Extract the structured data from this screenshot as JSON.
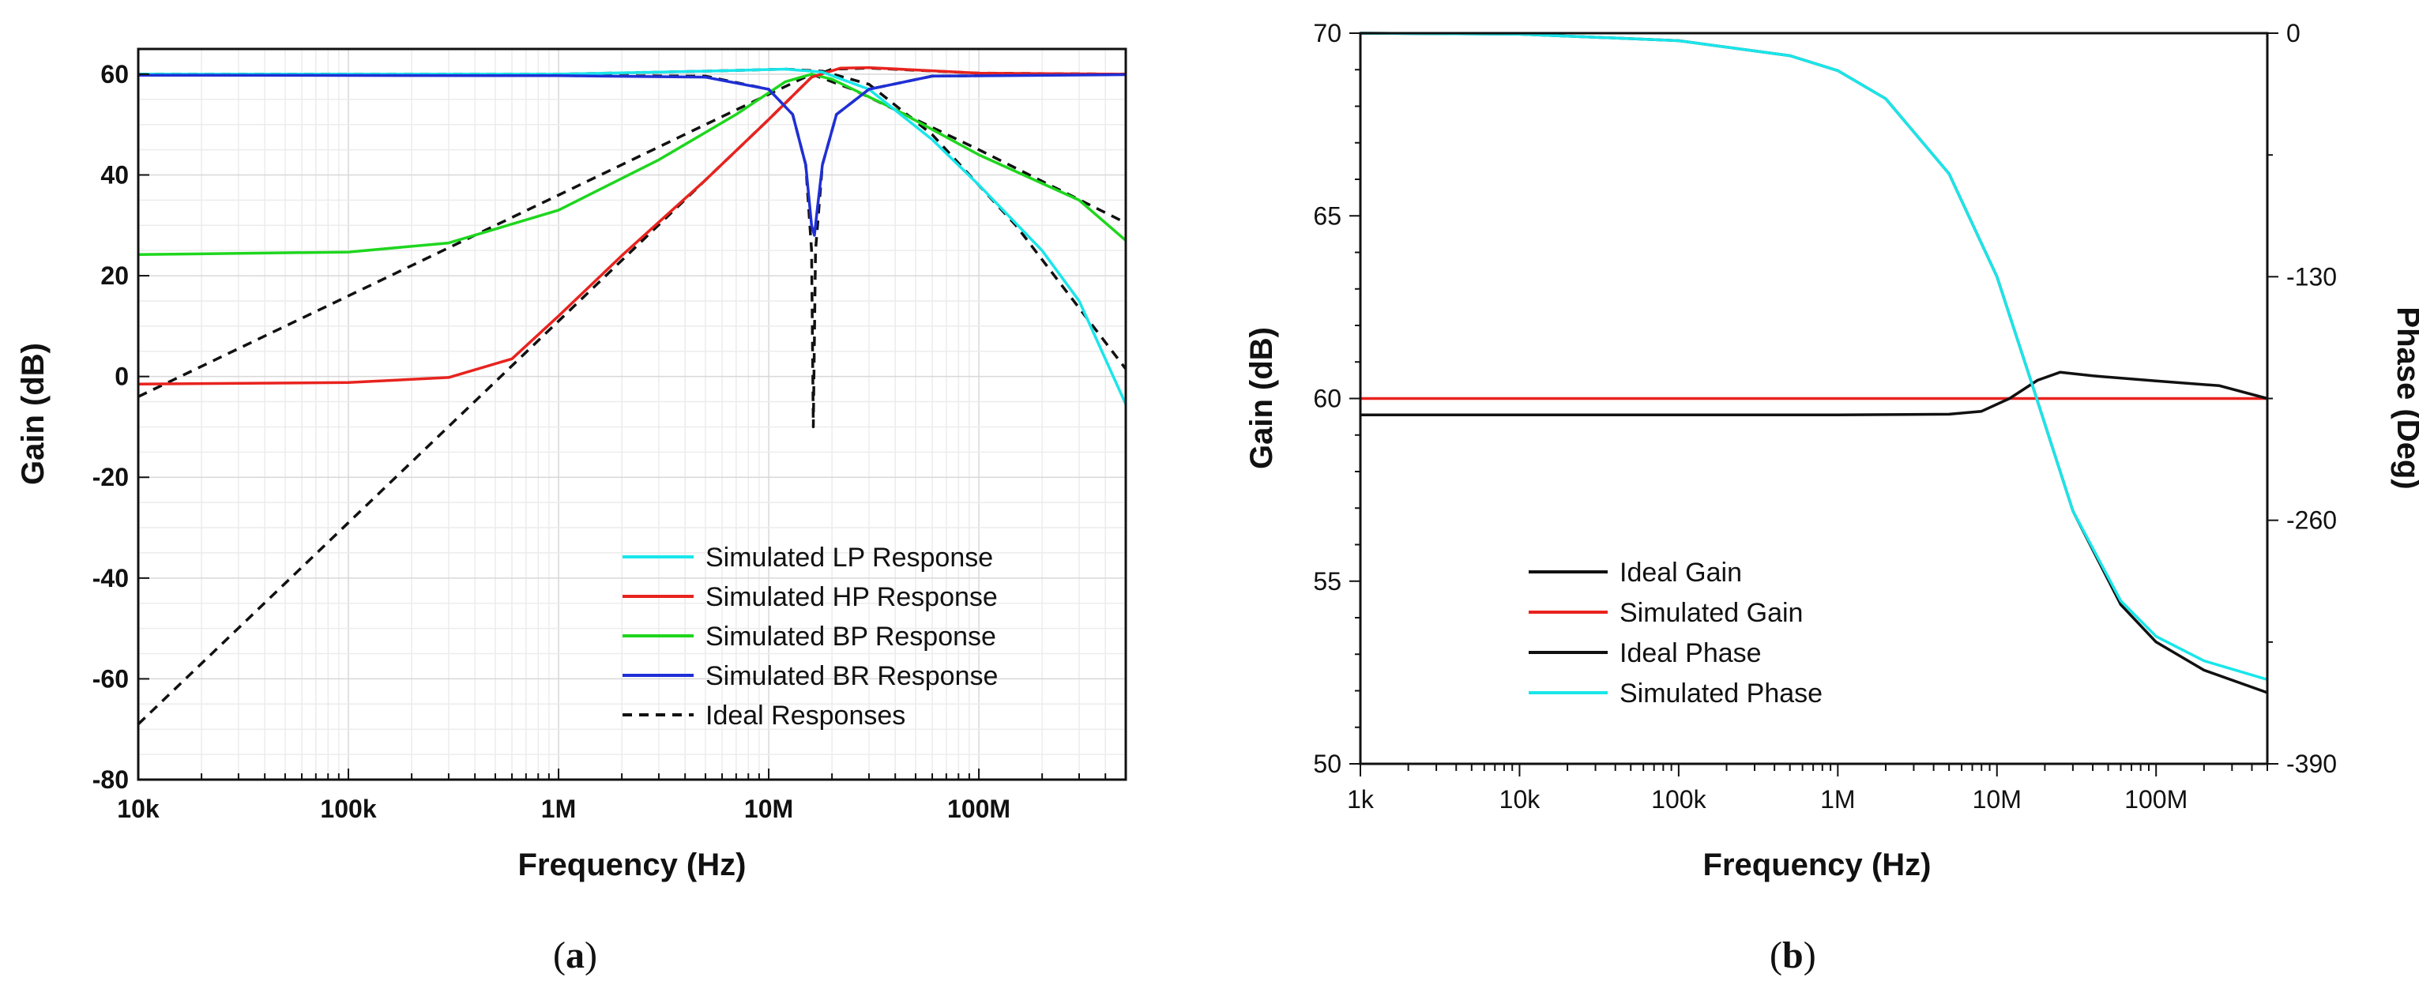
{
  "colors": {
    "lp": "#19e6ea",
    "hp": "#e8231e",
    "bp": "#1ed61e",
    "br": "#1f2fd6",
    "ideal": "#111111",
    "sim_phase": "#19e6ea"
  },
  "panels": {
    "a": {
      "caption_open": "(",
      "caption_letter": "a",
      "caption_close": ")"
    },
    "b": {
      "caption_open": "(",
      "caption_letter": "b",
      "caption_close": ")"
    }
  },
  "chart_data": [
    {
      "type": "line",
      "xlabel": "Frequency (Hz)",
      "ylabel": "Gain (dB)",
      "xscale": "log",
      "xlim": [
        10000,
        500000000
      ],
      "ylim": [
        -80,
        65
      ],
      "xticks": [
        {
          "v": 10000,
          "t": "10k"
        },
        {
          "v": 100000,
          "t": "100k"
        },
        {
          "v": 1000000,
          "t": "1M"
        },
        {
          "v": 10000000,
          "t": "10M"
        },
        {
          "v": 100000000,
          "t": "100M"
        }
      ],
      "yticks": [
        {
          "v": -80,
          "t": "-80"
        },
        {
          "v": -60,
          "t": "-60"
        },
        {
          "v": -40,
          "t": "-40"
        },
        {
          "v": -20,
          "t": "-20"
        },
        {
          "v": 0,
          "t": "0"
        },
        {
          "v": 20,
          "t": "20"
        },
        {
          "v": 40,
          "t": "40"
        },
        {
          "v": 60,
          "t": "60"
        }
      ],
      "grid": true,
      "legend_position": "bottom-right",
      "legend": [
        {
          "label": "Simulated LP Response",
          "color": "lp",
          "dash": false
        },
        {
          "label": "Simulated HP Response",
          "color": "hp",
          "dash": false
        },
        {
          "label": "Simulated BP Response",
          "color": "bp",
          "dash": false
        },
        {
          "label": "Simulated BR Response",
          "color": "br",
          "dash": false
        },
        {
          "label": "Ideal Responses",
          "color": "ideal",
          "dash": true
        }
      ],
      "series": [
        {
          "name": "Ideal Responses",
          "color": "ideal",
          "dash": true,
          "points": [
            [
              10000,
              60
            ],
            [
              1000000,
              60
            ],
            [
              5000000,
              60.6
            ],
            [
              12000000,
              61
            ],
            [
              18000000,
              60.6
            ],
            [
              30000000,
              58
            ],
            [
              60000000,
              48
            ],
            [
              150000000,
              30
            ],
            [
              500000000,
              1.5
            ]
          ]
        },
        {
          "name": "Ideal Responses",
          "color": "ideal",
          "dash": true,
          "points": [
            [
              10000,
              -69
            ],
            [
              100000,
              -29
            ],
            [
              1000000,
              11
            ],
            [
              5000000,
              39
            ],
            [
              10000000,
              51
            ],
            [
              16000000,
              59.4
            ],
            [
              20000000,
              61
            ],
            [
              30000000,
              61.2
            ],
            [
              100000000,
              60.2
            ],
            [
              500000000,
              60
            ]
          ]
        },
        {
          "name": "Ideal Responses",
          "color": "ideal",
          "dash": true,
          "points": [
            [
              10000,
              -4
            ],
            [
              100000,
              16
            ],
            [
              1000000,
              36
            ],
            [
              5000000,
              50
            ],
            [
              10000000,
              56
            ],
            [
              16000000,
              60
            ],
            [
              25000000,
              57
            ],
            [
              100000000,
              45
            ],
            [
              500000000,
              30.5
            ]
          ]
        },
        {
          "name": "Ideal Responses",
          "color": "ideal",
          "dash": true,
          "points": [
            [
              10000,
              60
            ],
            [
              5000000,
              59.6
            ],
            [
              10000000,
              57
            ],
            [
              13000000,
              52
            ],
            [
              15000000,
              42
            ],
            [
              16000000,
              25
            ],
            [
              16300000,
              -10
            ],
            [
              16700000,
              25
            ],
            [
              18000000,
              42
            ],
            [
              21000000,
              52
            ],
            [
              30000000,
              57
            ],
            [
              60000000,
              59.6
            ],
            [
              500000000,
              60
            ]
          ]
        },
        {
          "name": "Simulated BP Response",
          "color": "bp",
          "points": [
            [
              10000,
              24.2
            ],
            [
              100000,
              24.7
            ],
            [
              300000,
              26.5
            ],
            [
              1000000,
              33
            ],
            [
              3000000,
              43
            ],
            [
              7000000,
              52
            ],
            [
              12000000,
              58.5
            ],
            [
              16000000,
              60
            ],
            [
              20000000,
              59
            ],
            [
              40000000,
              53
            ],
            [
              100000000,
              44
            ],
            [
              300000000,
              35
            ],
            [
              500000000,
              27
            ]
          ]
        },
        {
          "name": "Simulated HP Response",
          "color": "hp",
          "points": [
            [
              10000,
              -1.5
            ],
            [
              100000,
              -1.2
            ],
            [
              300000,
              -0.2
            ],
            [
              600000,
              3.5
            ],
            [
              1000000,
              12
            ],
            [
              2000000,
              24
            ],
            [
              5000000,
              39
            ],
            [
              10000000,
              51
            ],
            [
              16000000,
              59.4
            ],
            [
              22000000,
              61.2
            ],
            [
              30000000,
              61.3
            ],
            [
              100000000,
              60.2
            ],
            [
              500000000,
              60
            ]
          ]
        },
        {
          "name": "Simulated LP Response",
          "color": "lp",
          "points": [
            [
              10000,
              60
            ],
            [
              1000000,
              60
            ],
            [
              5000000,
              60.6
            ],
            [
              12000000,
              61
            ],
            [
              18000000,
              60.4
            ],
            [
              30000000,
              57
            ],
            [
              60000000,
              47
            ],
            [
              100000000,
              38
            ],
            [
              200000000,
              25
            ],
            [
              300000000,
              15
            ],
            [
              500000000,
              -5.5
            ]
          ]
        },
        {
          "name": "Simulated BR Response",
          "color": "br",
          "points": [
            [
              10000,
              59.8
            ],
            [
              1000000,
              59.7
            ],
            [
              5000000,
              59.4
            ],
            [
              10000000,
              57
            ],
            [
              13000000,
              52
            ],
            [
              15000000,
              42
            ],
            [
              16000000,
              30
            ],
            [
              16500000,
              28
            ],
            [
              17000000,
              33
            ],
            [
              18000000,
              42
            ],
            [
              21000000,
              52
            ],
            [
              30000000,
              57
            ],
            [
              60000000,
              59.6
            ],
            [
              500000000,
              59.9
            ]
          ]
        }
      ]
    },
    {
      "type": "line",
      "xlabel_main": "Frequency",
      "xlabel_unit": "(Hz)",
      "ylabel": "Gain (dB)",
      "y2label": "Phase (Deg)",
      "xscale": "log",
      "xlim": [
        1000,
        500000000
      ],
      "ylim": [
        50,
        70
      ],
      "y2lim": [
        -390,
        0
      ],
      "xticks": [
        {
          "v": 1000,
          "t": "1k"
        },
        {
          "v": 10000,
          "t": "10k"
        },
        {
          "v": 100000,
          "t": "100k"
        },
        {
          "v": 1000000,
          "t": "1M"
        },
        {
          "v": 10000000,
          "t": "10M"
        },
        {
          "v": 100000000,
          "t": "100M"
        }
      ],
      "yticks": [
        {
          "v": 50,
          "t": "50"
        },
        {
          "v": 55,
          "t": "55"
        },
        {
          "v": 60,
          "t": "60"
        },
        {
          "v": 65,
          "t": "65"
        },
        {
          "v": 70,
          "t": "70"
        }
      ],
      "y2ticks": [
        {
          "v": -390,
          "t": "-390"
        },
        {
          "v": -260,
          "t": "-260"
        },
        {
          "v": -130,
          "t": "-130"
        },
        {
          "v": 0,
          "t": "0"
        }
      ],
      "grid": false,
      "legend_position": "bottom-left",
      "legend": [
        {
          "label": "Ideal Gain",
          "color": "ideal"
        },
        {
          "label": "Simulated Gain",
          "color": "hp"
        },
        {
          "label": "Ideal Phase",
          "color": "ideal"
        },
        {
          "label": "Simulated Phase",
          "color": "sim_phase"
        }
      ],
      "series": [
        {
          "name": "Simulated Gain",
          "color": "hp",
          "axis": "y",
          "points": [
            [
              1000,
              60
            ],
            [
              500000000,
              60
            ]
          ]
        },
        {
          "name": "Ideal Gain",
          "color": "ideal",
          "axis": "y",
          "points": [
            [
              1000,
              59.55
            ],
            [
              1000000,
              59.55
            ],
            [
              5000000,
              59.57
            ],
            [
              8000000,
              59.65
            ],
            [
              12000000,
              60
            ],
            [
              18000000,
              60.5
            ],
            [
              25000000,
              60.72
            ],
            [
              40000000,
              60.62
            ],
            [
              100000000,
              60.48
            ],
            [
              250000000,
              60.35
            ],
            [
              500000000,
              60
            ]
          ]
        },
        {
          "name": "Ideal Phase",
          "color": "ideal",
          "axis": "y2",
          "points": [
            [
              1000,
              0
            ],
            [
              10000,
              -0.5
            ],
            [
              100000,
              -4
            ],
            [
              500000,
              -12
            ],
            [
              1000000,
              -20
            ],
            [
              2000000,
              -35
            ],
            [
              5000000,
              -75
            ],
            [
              10000000,
              -130
            ],
            [
              17000000,
              -190
            ],
            [
              30000000,
              -255
            ],
            [
              60000000,
              -305
            ],
            [
              100000000,
              -325
            ],
            [
              200000000,
              -340
            ],
            [
              500000000,
              -352
            ]
          ]
        },
        {
          "name": "Simulated Phase",
          "color": "sim_phase",
          "axis": "y2",
          "points": [
            [
              1000,
              0
            ],
            [
              10000,
              -0.5
            ],
            [
              100000,
              -4
            ],
            [
              500000,
              -12
            ],
            [
              1000000,
              -20
            ],
            [
              2000000,
              -35
            ],
            [
              5000000,
              -75
            ],
            [
              10000000,
              -130
            ],
            [
              17000000,
              -190
            ],
            [
              30000000,
              -255
            ],
            [
              60000000,
              -303
            ],
            [
              100000000,
              -322
            ],
            [
              200000000,
              -335
            ],
            [
              500000000,
              -345
            ]
          ]
        }
      ]
    }
  ]
}
